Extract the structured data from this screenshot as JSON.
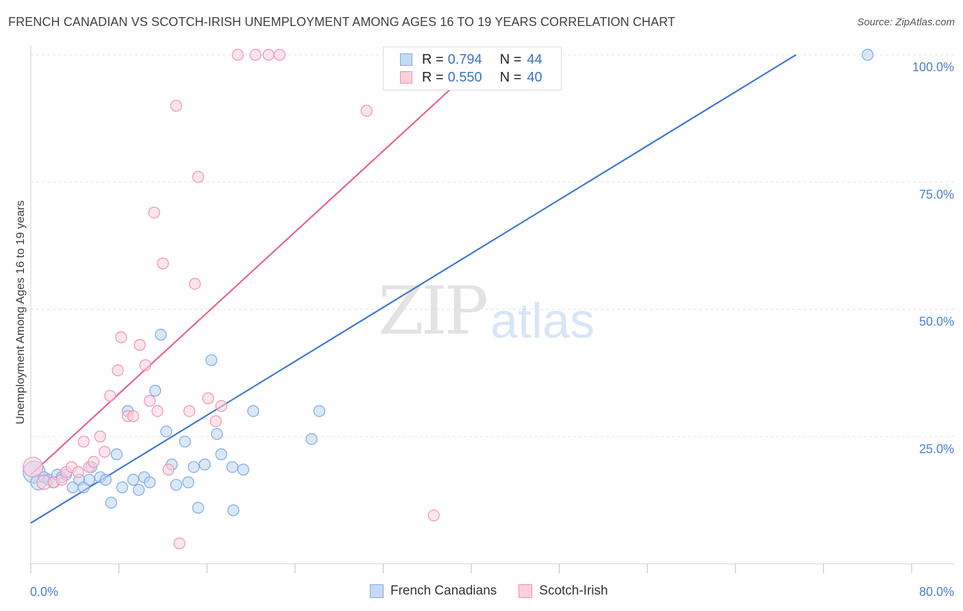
{
  "header": {
    "title": "FRENCH CANADIAN VS SCOTCH-IRISH UNEMPLOYMENT AMONG AGES 16 TO 19 YEARS CORRELATION CHART",
    "source": "Source: ZipAtlas.com"
  },
  "watermark": {
    "zip": "ZIP",
    "atlas": "atlas"
  },
  "legend": {
    "rows": [
      {
        "r_label": "R =",
        "r_value": "0.794",
        "n_label": "N =",
        "n_value": "44",
        "color": "#7aaae6",
        "fill": "#c5daf5"
      },
      {
        "r_label": "R =",
        "r_value": "0.550",
        "n_label": "N =",
        "n_value": "40",
        "color": "#f08fb0",
        "fill": "#fbd0dd"
      }
    ]
  },
  "bottom_legend": {
    "items": [
      "French Canadians",
      "Scotch-Irish"
    ]
  },
  "chart_data": {
    "type": "scatter",
    "title": "FRENCH CANADIAN VS SCOTCH-IRISH UNEMPLOYMENT AMONG AGES 16 TO 19 YEARS CORRELATION CHART",
    "xlabel": "",
    "ylabel": "Unemployment Among Ages 16 to 19 years",
    "xlim": [
      0,
      80
    ],
    "ylim": [
      0,
      100
    ],
    "x_tick_labels": [
      "0.0%",
      "80.0%"
    ],
    "y_ticks": [
      25,
      50,
      75,
      100
    ],
    "y_tick_labels": [
      "25.0%",
      "50.0%",
      "75.0%",
      "100.0%"
    ],
    "grid": true,
    "series": [
      {
        "name": "French Canadians",
        "color": "#3a78cc",
        "fill": "#bcd4f2",
        "stroke": "#7aa9e4",
        "trend": {
          "x0": 0,
          "y0": 8,
          "x1": 69.5,
          "y1": 100
        },
        "points": [
          [
            0.3,
            18,
            2
          ],
          [
            0.7,
            16,
            1.4
          ],
          [
            1.2,
            17,
            1
          ],
          [
            1.6,
            16.5,
            1
          ],
          [
            2.0,
            16,
            1
          ],
          [
            2.4,
            17.5,
            1
          ],
          [
            2.8,
            17,
            1
          ],
          [
            3.2,
            17.5,
            1
          ],
          [
            3.8,
            15,
            1
          ],
          [
            4.4,
            16.5,
            1
          ],
          [
            4.8,
            15,
            1
          ],
          [
            5.3,
            16.5,
            1
          ],
          [
            5.5,
            19,
            1
          ],
          [
            6.3,
            17,
            1
          ],
          [
            6.8,
            16.5,
            1
          ],
          [
            7.3,
            12,
            1
          ],
          [
            7.8,
            21.5,
            1
          ],
          [
            8.3,
            15,
            1
          ],
          [
            8.8,
            30,
            1
          ],
          [
            9.3,
            16.5,
            1
          ],
          [
            9.8,
            14.5,
            1
          ],
          [
            10.3,
            17,
            1
          ],
          [
            10.8,
            16,
            1
          ],
          [
            11.3,
            34,
            1
          ],
          [
            11.8,
            45,
            1
          ],
          [
            12.3,
            26,
            1
          ],
          [
            12.8,
            19.5,
            1
          ],
          [
            13.2,
            15.5,
            1
          ],
          [
            14.0,
            24,
            1
          ],
          [
            14.3,
            16,
            1
          ],
          [
            14.8,
            19,
            1
          ],
          [
            15.2,
            11,
            1
          ],
          [
            15.8,
            19.5,
            1
          ],
          [
            16.4,
            40,
            1
          ],
          [
            16.9,
            25.5,
            1
          ],
          [
            17.3,
            21.5,
            1
          ],
          [
            18.4,
            10.5,
            1
          ],
          [
            18.3,
            19,
            1
          ],
          [
            19.3,
            18.5,
            1
          ],
          [
            20.2,
            30,
            1
          ],
          [
            25.5,
            24.5,
            1
          ],
          [
            26.2,
            30,
            1
          ],
          [
            76.0,
            100,
            1
          ]
        ]
      },
      {
        "name": "Scotch-Irish",
        "color": "#e8608c",
        "fill": "#fbd0dd",
        "stroke": "#f08fb0",
        "trend": {
          "x0": 0,
          "y0": 17.5,
          "x1": 39,
          "y1": 95
        },
        "points": [
          [
            0.2,
            19,
            1.8
          ],
          [
            1.2,
            16,
            1.3
          ],
          [
            2.1,
            16,
            1
          ],
          [
            2.8,
            16.5,
            1
          ],
          [
            3.2,
            18,
            1
          ],
          [
            3.7,
            19,
            1
          ],
          [
            4.3,
            18,
            1
          ],
          [
            4.8,
            24,
            1
          ],
          [
            5.3,
            19,
            1
          ],
          [
            5.7,
            20,
            1
          ],
          [
            6.3,
            25,
            1
          ],
          [
            6.7,
            22,
            1
          ],
          [
            7.2,
            33,
            1
          ],
          [
            7.9,
            38,
            1
          ],
          [
            8.2,
            44.5,
            1
          ],
          [
            8.8,
            29,
            1
          ],
          [
            9.3,
            29,
            1
          ],
          [
            9.9,
            43,
            1
          ],
          [
            10.4,
            39,
            1
          ],
          [
            10.8,
            32,
            1
          ],
          [
            11.2,
            69,
            1
          ],
          [
            11.5,
            30,
            1
          ],
          [
            12.0,
            59,
            1
          ],
          [
            12.5,
            18.5,
            1
          ],
          [
            13.2,
            90,
            1
          ],
          [
            13.5,
            4,
            1
          ],
          [
            14.4,
            30,
            1
          ],
          [
            14.9,
            55,
            1
          ],
          [
            15.2,
            76,
            1
          ],
          [
            16.1,
            32.5,
            1
          ],
          [
            16.8,
            28,
            1
          ],
          [
            17.3,
            31,
            1
          ],
          [
            18.8,
            100,
            1
          ],
          [
            20.4,
            100,
            1
          ],
          [
            21.6,
            100,
            1
          ],
          [
            22.6,
            100,
            1
          ],
          [
            30.5,
            89,
            1
          ],
          [
            36.6,
            9.5,
            1
          ]
        ]
      }
    ]
  }
}
